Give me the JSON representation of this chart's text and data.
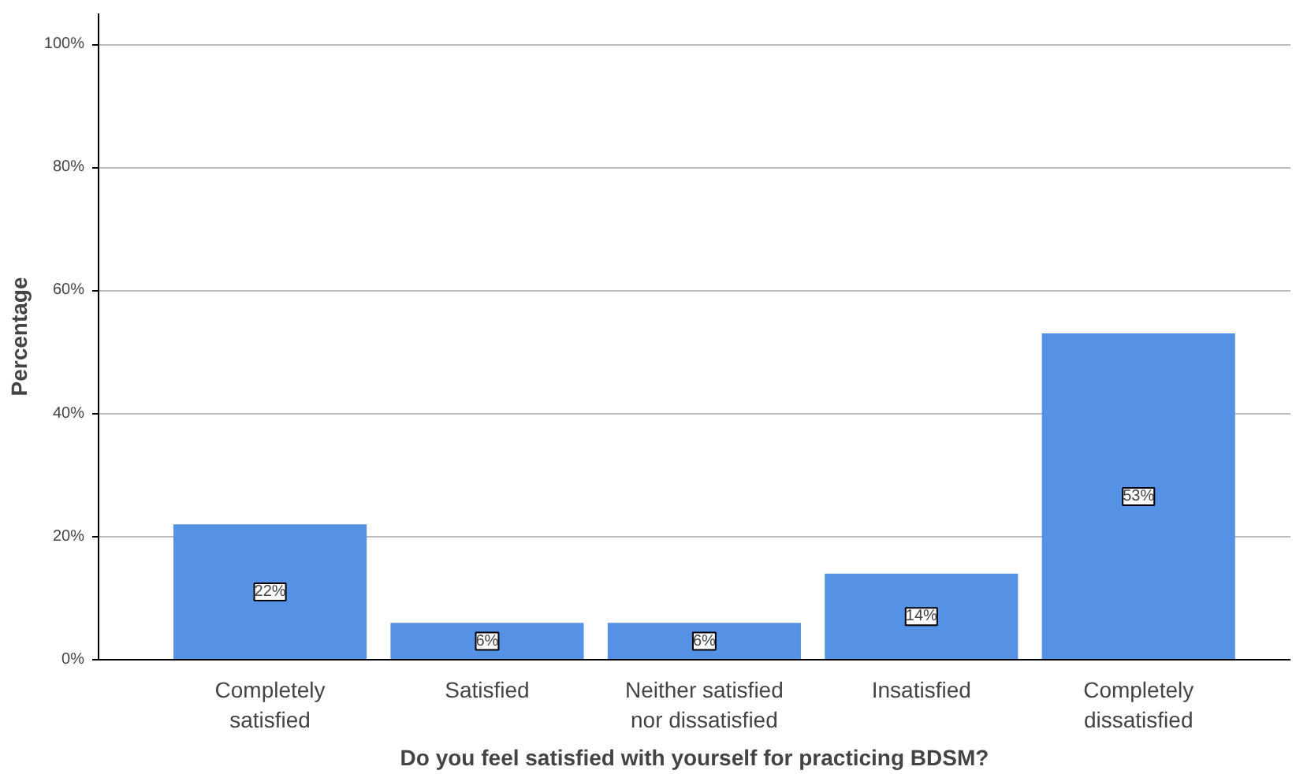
{
  "chart_data": {
    "type": "bar",
    "xlabel": "Do you feel satisfied with yourself for practicing BDSM?",
    "ylabel": "Percentage",
    "categories": [
      "Completely satisfied",
      "Satisfied",
      "Neither satisfied nor dissatisfied",
      "Insatisfied",
      "Completely dissatisfied"
    ],
    "values": [
      22,
      6,
      6,
      14,
      53
    ],
    "value_labels": [
      "22%",
      "6%",
      "6%",
      "14%",
      "53%"
    ],
    "color": "#5592e6",
    "ylim": [
      0,
      105
    ],
    "yticks": [
      {
        "value": 0,
        "label": "0%"
      },
      {
        "value": 20,
        "label": "20%"
      },
      {
        "value": 40,
        "label": "40%"
      },
      {
        "value": 60,
        "label": "60%"
      },
      {
        "value": 80,
        "label": "80%"
      },
      {
        "value": 100,
        "label": "100%"
      }
    ],
    "grid": "y"
  }
}
